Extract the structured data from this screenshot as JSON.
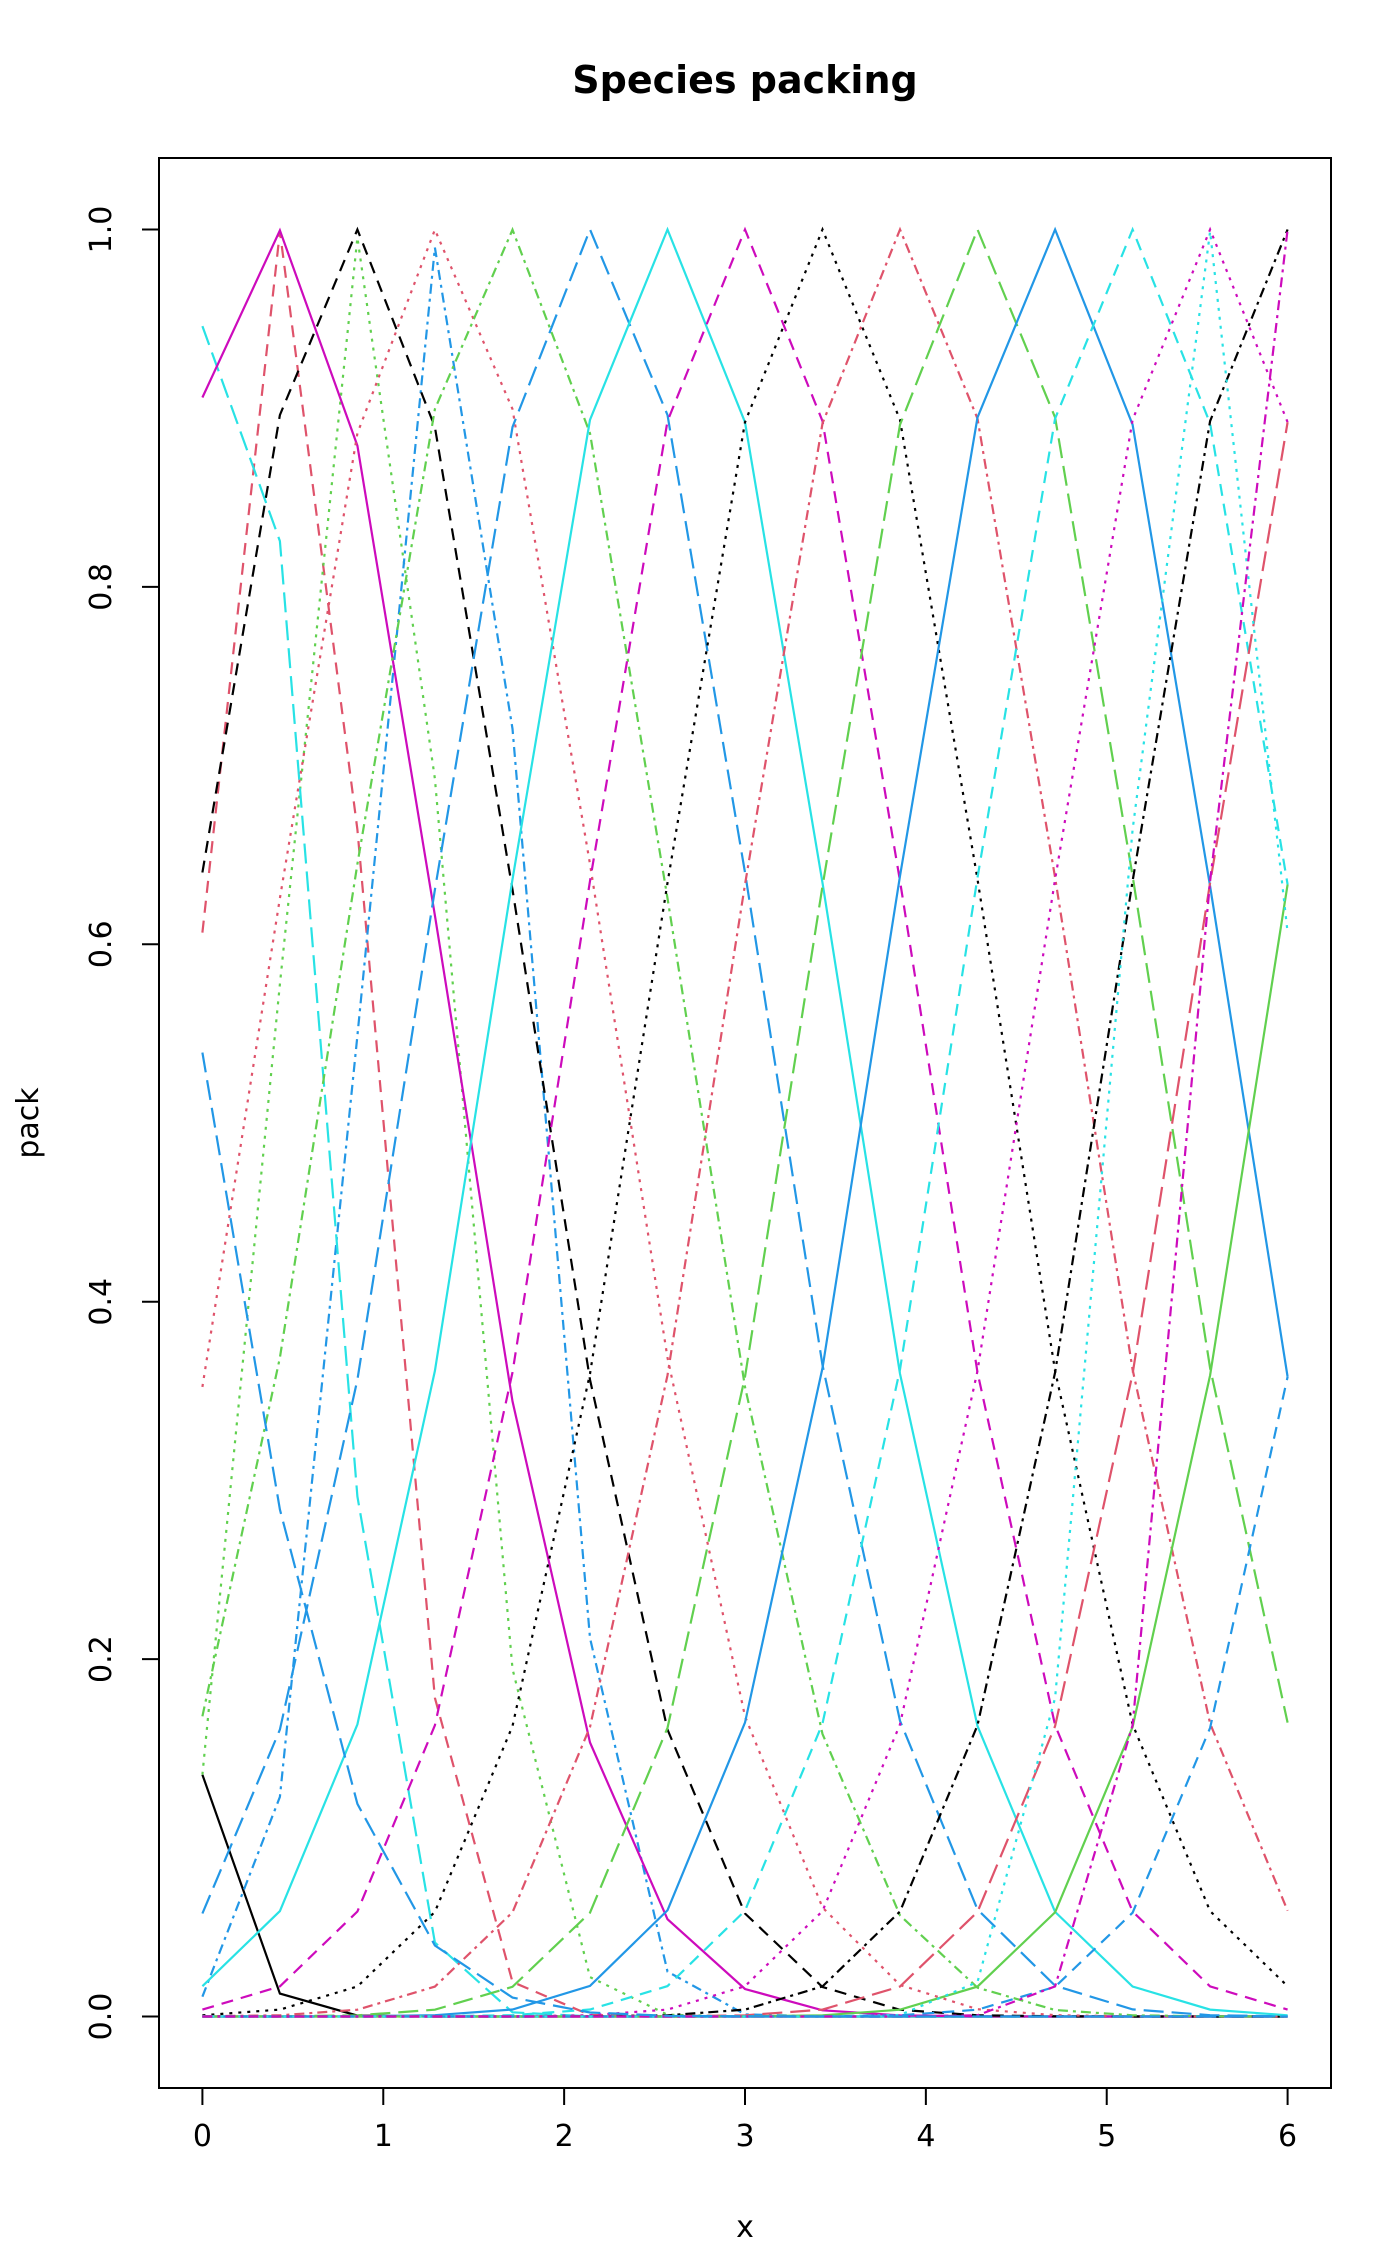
{
  "chart_data": {
    "type": "line",
    "title": "Species packing",
    "xlabel": "x",
    "ylabel": "pack",
    "xlim": [
      -0.24,
      6.24
    ],
    "ylim": [
      -0.04,
      1.04
    ],
    "xticks": [
      "0",
      "1",
      "2",
      "3",
      "4",
      "5",
      "6"
    ],
    "yticks": [
      "0.0",
      "0.2",
      "0.4",
      "0.6",
      "0.8",
      "1.0"
    ],
    "grid": false,
    "legend": "none",
    "x": [
      0,
      0.4286,
      0.8571,
      1.2857,
      1.7143,
      2.1429,
      2.5714,
      3.0,
      3.4286,
      3.8571,
      4.2857,
      4.7143,
      5.1429,
      5.5714,
      6.0
    ],
    "curve_model": "gaussian",
    "series": [
      {
        "optimum": -0.9,
        "width": 0.45,
        "color": "#000000",
        "dash": "solid"
      },
      {
        "optimum": 0.45,
        "width": 0.45,
        "color": "#DF536B",
        "dash": "12,8"
      },
      {
        "optimum": 0.9,
        "width": 0.45,
        "color": "#61D04F",
        "dash": "3,6"
      },
      {
        "optimum": 1.35,
        "width": 0.45,
        "color": "#2297E6",
        "dash": "10,5,3,5"
      },
      {
        "optimum": 0.15,
        "width": 0.45,
        "color": "#28E2E5",
        "dash": "20,8"
      },
      {
        "optimum": 0.4,
        "width": 0.9,
        "color": "#CD0BBC",
        "dash": "solid"
      },
      {
        "optimum": 0.85,
        "width": 0.9,
        "color": "#000000",
        "dash": "12,8"
      },
      {
        "optimum": 1.3,
        "width": 0.9,
        "color": "#DF536B",
        "dash": "3,6"
      },
      {
        "optimum": 1.7,
        "width": 0.9,
        "color": "#61D04F",
        "dash": "10,5,3,5"
      },
      {
        "optimum": 2.15,
        "width": 0.9,
        "color": "#2297E6",
        "dash": "20,8"
      },
      {
        "optimum": 2.57,
        "width": 0.9,
        "color": "#28E2E5",
        "dash": "solid"
      },
      {
        "optimum": 3.0,
        "width": 0.9,
        "color": "#CD0BBC",
        "dash": "12,8"
      },
      {
        "optimum": 3.43,
        "width": 0.9,
        "color": "#000000",
        "dash": "3,6"
      },
      {
        "optimum": 3.86,
        "width": 0.9,
        "color": "#DF536B",
        "dash": "10,5,3,5"
      },
      {
        "optimum": 4.29,
        "width": 0.9,
        "color": "#61D04F",
        "dash": "20,8"
      },
      {
        "optimum": 4.71,
        "width": 0.9,
        "color": "#2297E6",
        "dash": "solid"
      },
      {
        "optimum": 5.14,
        "width": 0.9,
        "color": "#28E2E5",
        "dash": "12,8"
      },
      {
        "optimum": 5.57,
        "width": 0.9,
        "color": "#CD0BBC",
        "dash": "3,6"
      },
      {
        "optimum": 6.0,
        "width": 0.9,
        "color": "#000000",
        "dash": "10,5,3,5"
      },
      {
        "optimum": 6.43,
        "width": 0.9,
        "color": "#DF536B",
        "dash": "20,8"
      },
      {
        "optimum": 6.86,
        "width": 0.9,
        "color": "#61D04F",
        "dash": "solid"
      },
      {
        "optimum": 7.29,
        "width": 0.9,
        "color": "#2297E6",
        "dash": "12,8"
      },
      {
        "optimum": 5.55,
        "width": 0.45,
        "color": "#28E2E5",
        "dash": "3,6"
      },
      {
        "optimum": 6.0,
        "width": 0.45,
        "color": "#CD0BBC",
        "dash": "10,5,3,5"
      },
      {
        "optimum": -1.0,
        "width": 0.9,
        "color": "#2297E6",
        "dash": "20,8"
      }
    ]
  }
}
